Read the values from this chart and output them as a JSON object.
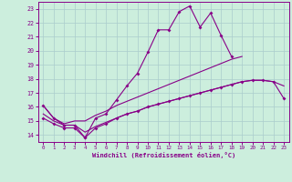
{
  "xlabel": "Windchill (Refroidissement éolien,°C)",
  "bg_color": "#cceedd",
  "line_color": "#880088",
  "grid_color": "#aacccc",
  "xlim": [
    -0.5,
    23.5
  ],
  "ylim": [
    13.5,
    23.5
  ],
  "yticks": [
    14,
    15,
    16,
    17,
    18,
    19,
    20,
    21,
    22,
    23
  ],
  "xticks": [
    0,
    1,
    2,
    3,
    4,
    5,
    6,
    7,
    8,
    9,
    10,
    11,
    12,
    13,
    14,
    15,
    16,
    17,
    18,
    19,
    20,
    21,
    22,
    23
  ],
  "line1_x": [
    0,
    1,
    2,
    3,
    4,
    5,
    6,
    7,
    8,
    9,
    10,
    11,
    12,
    13,
    14,
    15,
    16,
    17,
    18
  ],
  "line1_y": [
    16.1,
    15.2,
    14.7,
    14.7,
    13.8,
    15.2,
    15.5,
    16.5,
    17.5,
    18.4,
    19.9,
    21.5,
    21.5,
    22.8,
    23.2,
    21.7,
    22.7,
    21.1,
    19.6
  ],
  "line2_x": [
    0,
    1,
    2,
    3,
    4,
    5,
    6,
    7,
    8,
    9,
    10,
    11,
    12,
    13,
    14,
    15,
    16,
    17,
    18,
    19
  ],
  "line2_y": [
    16.1,
    15.2,
    14.8,
    15.0,
    15.0,
    15.4,
    15.7,
    16.1,
    16.4,
    16.7,
    17.0,
    17.3,
    17.6,
    17.9,
    18.2,
    18.5,
    18.8,
    19.1,
    19.4,
    19.6
  ],
  "line3_x": [
    0,
    1,
    2,
    3,
    4,
    5,
    6,
    7,
    8,
    9,
    10,
    11,
    12,
    13,
    14,
    15,
    16,
    17,
    18,
    19,
    20,
    21,
    22,
    23
  ],
  "line3_y": [
    15.5,
    15.0,
    14.7,
    14.7,
    14.2,
    14.6,
    14.9,
    15.2,
    15.5,
    15.7,
    16.0,
    16.2,
    16.4,
    16.6,
    16.8,
    17.0,
    17.2,
    17.4,
    17.6,
    17.8,
    17.9,
    17.9,
    17.8,
    17.5
  ],
  "line4_x": [
    0,
    1,
    2,
    3,
    4,
    5,
    6,
    7,
    8,
    9,
    10,
    11,
    12,
    13,
    14,
    15,
    16,
    17,
    18,
    19,
    20,
    21,
    22,
    23
  ],
  "line4_y": [
    15.2,
    14.8,
    14.5,
    14.5,
    13.8,
    14.5,
    14.8,
    15.2,
    15.5,
    15.7,
    16.0,
    16.2,
    16.4,
    16.6,
    16.8,
    17.0,
    17.2,
    17.4,
    17.6,
    17.8,
    17.9,
    17.9,
    17.8,
    16.6
  ],
  "figsize": [
    3.2,
    2.0
  ],
  "dpi": 100
}
